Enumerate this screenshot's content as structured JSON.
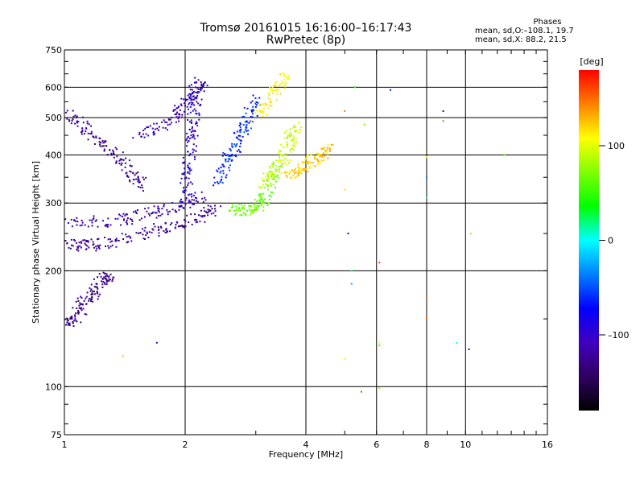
{
  "header": {
    "title_line1": "Tromsø 20161015 16:16:00–16:17:43",
    "title_line2": "RwPretec (8p)"
  },
  "phases_info": {
    "heading": "Phases",
    "line1": "mean, sd,O:–108.1, 19.7",
    "line2": "mean, sd,X:  88.2, 21.5"
  },
  "colorbar": {
    "unit_label": "[deg]",
    "ticks": [
      "100",
      "0",
      "–100"
    ],
    "colors": [
      "#ff0000",
      "#ff8000",
      "#ffff00",
      "#80ff00",
      "#00ff00",
      "#00ffff",
      "#0080ff",
      "#0000ff",
      "#4000c0",
      "#300060",
      "#000000"
    ]
  },
  "chart_data": {
    "type": "scatter",
    "title": "Tromsø 20161015 16:16:00–16:17:43 RwPretec (8p)",
    "xlabel": "Frequency [MHz]",
    "ylabel": "Stationary phase Virtual Height [km]",
    "xscale": "log",
    "yscale": "log",
    "xlim": [
      1,
      16
    ],
    "ylim": [
      75,
      750
    ],
    "xticks": [
      1,
      2,
      4,
      6,
      8,
      10,
      16
    ],
    "yticks": [
      75,
      100,
      200,
      300,
      400,
      500,
      600,
      750
    ],
    "grid": true,
    "color_encoding": "phase [deg]",
    "traces": [
      {
        "phase_deg": -130,
        "points": [
          [
            1.0,
            140
          ],
          [
            1.05,
            150
          ],
          [
            1.1,
            160
          ],
          [
            1.15,
            170
          ],
          [
            1.2,
            180
          ],
          [
            1.25,
            190
          ],
          [
            1.3,
            195
          ]
        ]
      },
      {
        "phase_deg": -125,
        "points": [
          [
            1.0,
            235
          ],
          [
            1.1,
            232
          ],
          [
            1.2,
            234
          ],
          [
            1.4,
            240
          ],
          [
            1.6,
            250
          ],
          [
            1.8,
            260
          ],
          [
            2.0,
            268
          ],
          [
            2.2,
            278
          ],
          [
            2.4,
            290
          ]
        ]
      },
      {
        "phase_deg": -120,
        "points": [
          [
            1.0,
            270
          ],
          [
            1.2,
            268
          ],
          [
            1.4,
            272
          ],
          [
            1.6,
            280
          ],
          [
            1.8,
            290
          ],
          [
            2.0,
            300
          ],
          [
            2.2,
            312
          ]
        ]
      },
      {
        "phase_deg": -125,
        "points": [
          [
            1.0,
            520
          ],
          [
            1.1,
            480
          ],
          [
            1.2,
            440
          ],
          [
            1.3,
            410
          ],
          [
            1.4,
            380
          ],
          [
            1.5,
            350
          ],
          [
            1.6,
            330
          ]
        ]
      },
      {
        "phase_deg": -120,
        "points": [
          [
            1.5,
            450
          ],
          [
            1.7,
            470
          ],
          [
            1.9,
            500
          ],
          [
            2.0,
            540
          ],
          [
            2.1,
            580
          ],
          [
            2.2,
            620
          ]
        ]
      },
      {
        "phase_deg": -110,
        "points": [
          [
            2.0,
            300
          ],
          [
            2.02,
            350
          ],
          [
            2.05,
            400
          ],
          [
            2.08,
            450
          ],
          [
            2.1,
            500
          ],
          [
            2.12,
            550
          ],
          [
            2.15,
            600
          ]
        ]
      },
      {
        "phase_deg": -85,
        "points": [
          [
            2.4,
            340
          ],
          [
            2.5,
            370
          ],
          [
            2.6,
            400
          ],
          [
            2.7,
            430
          ],
          [
            2.8,
            470
          ],
          [
            2.9,
            510
          ],
          [
            3.0,
            560
          ]
        ]
      },
      {
        "phase_deg": 40,
        "points": [
          [
            2.6,
            290
          ],
          [
            2.8,
            288
          ],
          [
            3.0,
            292
          ],
          [
            3.1,
            300
          ],
          [
            3.2,
            320
          ],
          [
            3.3,
            350
          ],
          [
            3.4,
            380
          ]
        ]
      },
      {
        "phase_deg": 80,
        "points": [
          [
            3.1,
            330
          ],
          [
            3.3,
            360
          ],
          [
            3.5,
            390
          ],
          [
            3.6,
            420
          ],
          [
            3.7,
            450
          ],
          [
            3.8,
            480
          ]
        ]
      },
      {
        "phase_deg": 115,
        "points": [
          [
            3.6,
            350
          ],
          [
            3.8,
            360
          ],
          [
            4.0,
            375
          ],
          [
            4.2,
            390
          ],
          [
            4.4,
            400
          ],
          [
            4.6,
            420
          ]
        ]
      },
      {
        "phase_deg": 100,
        "points": [
          [
            3.0,
            500
          ],
          [
            3.2,
            550
          ],
          [
            3.4,
            600
          ],
          [
            3.6,
            640
          ]
        ]
      }
    ],
    "scatter_points": [
      {
        "x": 5.3,
        "y": 600,
        "phase_deg": 10
      },
      {
        "x": 5.0,
        "y": 520,
        "phase_deg": 140
      },
      {
        "x": 5.6,
        "y": 480,
        "phase_deg": 40
      },
      {
        "x": 6.5,
        "y": 590,
        "phase_deg": -80
      },
      {
        "x": 8.0,
        "y": 350,
        "phase_deg": -60
      },
      {
        "x": 8.0,
        "y": 310,
        "phase_deg": -20
      },
      {
        "x": 5.0,
        "y": 325,
        "phase_deg": 110
      },
      {
        "x": 5.1,
        "y": 250,
        "phase_deg": -100
      },
      {
        "x": 6.1,
        "y": 210,
        "phase_deg": 160
      },
      {
        "x": 5.2,
        "y": 200,
        "phase_deg": -10
      },
      {
        "x": 5.2,
        "y": 185,
        "phase_deg": -50
      },
      {
        "x": 8.0,
        "y": 170,
        "phase_deg": 150
      },
      {
        "x": 8.0,
        "y": 150,
        "phase_deg": 150
      },
      {
        "x": 9.5,
        "y": 130,
        "phase_deg": -30
      },
      {
        "x": 10.2,
        "y": 125,
        "phase_deg": -110
      },
      {
        "x": 6.1,
        "y": 130,
        "phase_deg": 90
      },
      {
        "x": 6.1,
        "y": 128,
        "phase_deg": -10
      },
      {
        "x": 5.0,
        "y": 118,
        "phase_deg": 100
      },
      {
        "x": 5.5,
        "y": 97,
        "phase_deg": 160
      },
      {
        "x": 6.1,
        "y": 99,
        "phase_deg": 60
      },
      {
        "x": 8.0,
        "y": 395,
        "phase_deg": 100
      },
      {
        "x": 8.8,
        "y": 520,
        "phase_deg": -120
      },
      {
        "x": 8.8,
        "y": 490,
        "phase_deg": 150
      },
      {
        "x": 10.3,
        "y": 250,
        "phase_deg": 120
      },
      {
        "x": 12.5,
        "y": 400,
        "phase_deg": 40
      },
      {
        "x": 1.4,
        "y": 120,
        "phase_deg": 120
      },
      {
        "x": 1.7,
        "y": 130,
        "phase_deg": -110
      }
    ]
  }
}
